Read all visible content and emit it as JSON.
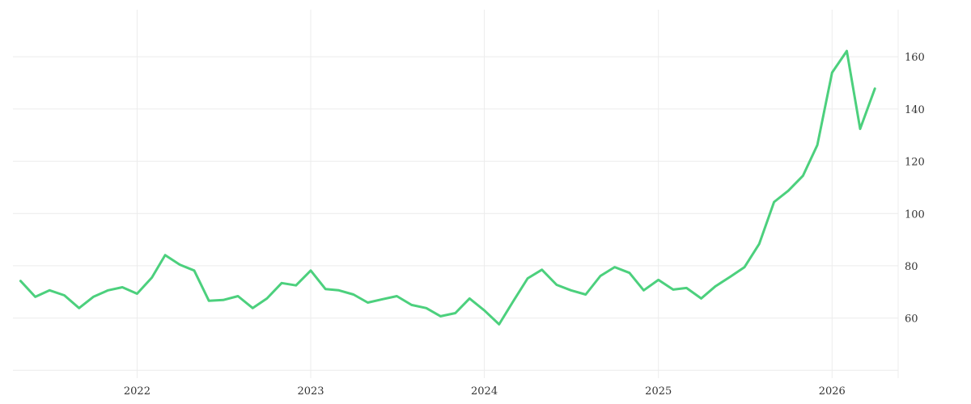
{
  "chart_data": {
    "type": "line",
    "title": "",
    "xlabel": "",
    "ylabel": "",
    "x_start": "2021-05",
    "x_frequency": "monthly",
    "x": [
      "2021-05",
      "2021-06",
      "2021-07",
      "2021-08",
      "2021-09",
      "2021-10",
      "2021-11",
      "2021-12",
      "2022-01",
      "2022-02",
      "2022-03",
      "2022-04",
      "2022-05",
      "2022-06",
      "2022-07",
      "2022-08",
      "2022-09",
      "2022-10",
      "2022-11",
      "2022-12",
      "2023-01",
      "2023-02",
      "2023-03",
      "2023-04",
      "2023-05",
      "2023-06",
      "2023-07",
      "2023-08",
      "2023-09",
      "2023-10",
      "2023-11",
      "2023-12",
      "2024-01",
      "2024-02",
      "2024-03",
      "2024-04",
      "2024-05",
      "2024-06",
      "2024-07",
      "2024-08",
      "2024-09",
      "2024-10",
      "2024-11",
      "2024-12",
      "2025-01",
      "2025-02",
      "2025-03",
      "2025-04",
      "2025-05",
      "2025-06",
      "2025-07",
      "2025-08",
      "2025-09",
      "2025-10",
      "2025-11",
      "2025-12",
      "2026-01",
      "2026-02",
      "2026-03",
      "2026-04"
    ],
    "series": [
      {
        "values": [
          74.2,
          68.1,
          70.6,
          68.7,
          63.8,
          68.1,
          70.6,
          71.8,
          69.3,
          75.5,
          84.1,
          80.4,
          78.2,
          66.6,
          66.9,
          68.4,
          63.8,
          67.5,
          73.4,
          72.5,
          78.2,
          71.1,
          70.6,
          69.0,
          65.9,
          67.2,
          68.4,
          65.0,
          63.8,
          60.7,
          61.9,
          67.5,
          62.9,
          57.6,
          66.2,
          75.2,
          78.5,
          72.7,
          70.6,
          69.0,
          76.1,
          79.5,
          77.3,
          70.6,
          74.6,
          70.9,
          71.5,
          67.5,
          72.2,
          75.8,
          79.5,
          88.4,
          104.4,
          108.7,
          114.5,
          126.2,
          153.9,
          162.2,
          132.4,
          147.8
        ],
        "color": "#4cd07d"
      }
    ],
    "x_ticks": [
      "2022",
      "2023",
      "2024",
      "2025",
      "2026"
    ],
    "y_ticks": [
      60,
      80,
      100,
      120,
      140,
      160
    ],
    "y_grid": [
      40,
      60,
      80,
      100,
      120,
      140,
      160
    ],
    "ylim": [
      37,
      178
    ],
    "xlim": [
      "2021-04-15",
      "2026-05-20"
    ],
    "y_axis_side": "right",
    "grid": true,
    "legend": "none"
  }
}
